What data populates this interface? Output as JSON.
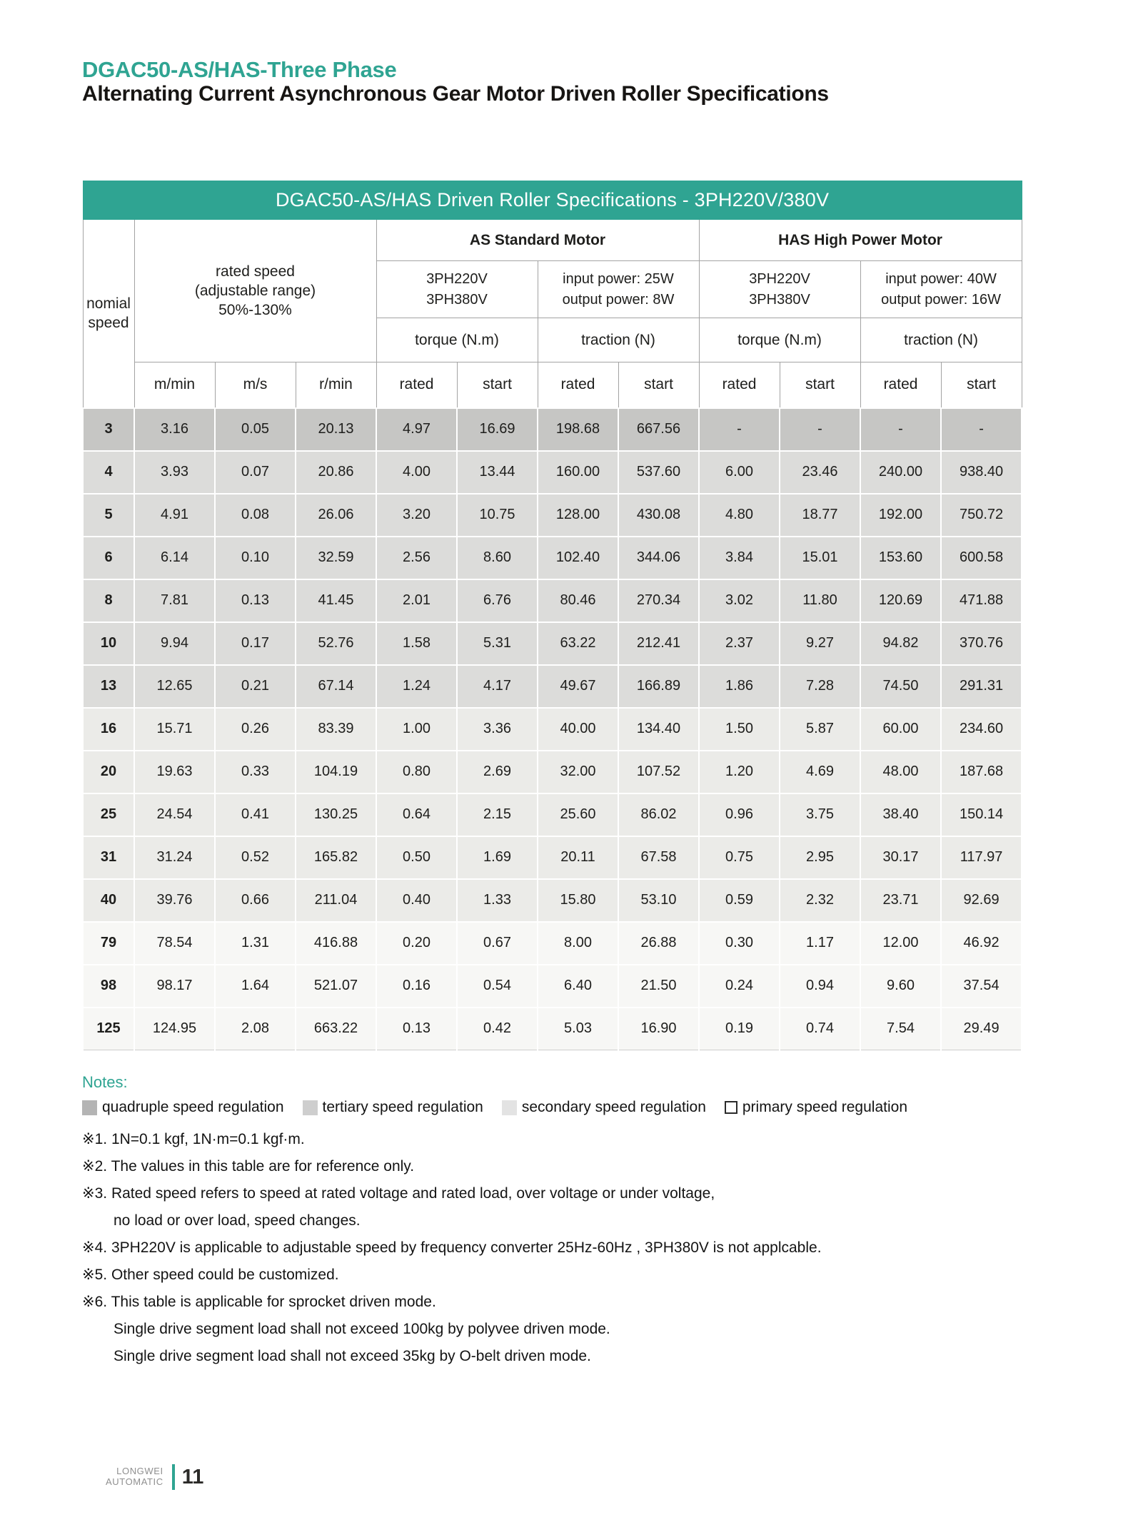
{
  "page": {
    "heading_line1": "DGAC50-AS/HAS-Three Phase",
    "heading_line2": "Alternating Current Asynchronous Gear Motor Driven Roller Specifications"
  },
  "table": {
    "title": "DGAC50-AS/HAS Driven Roller Specifications - 3PH220V/380V",
    "headers": {
      "nominal_speed": "nomial\nspeed",
      "rated_speed": "rated speed\n(adjustable range)\n50%-130%",
      "as_group": "AS Standard Motor",
      "has_group": "HAS High Power Motor",
      "as_voltage": "3PH220V\n3PH380V",
      "as_power": "input power: 25W\noutput power: 8W",
      "has_voltage": "3PH220V\n3PH380V",
      "has_power": "input power: 40W\noutput power: 16W",
      "as_torque": "torque (N.m)",
      "as_traction": "traction (N)",
      "has_torque": "torque (N.m)",
      "has_traction": "traction (N)",
      "units": [
        "m/min",
        "m/s",
        "r/min",
        "rated",
        "start",
        "rated",
        "start",
        "rated",
        "start",
        "rated",
        "start"
      ]
    },
    "rows": [
      {
        "speed": "3",
        "regulation": "quadruple",
        "values": [
          "3.16",
          "0.05",
          "20.13",
          "4.97",
          "16.69",
          "198.68",
          "667.56",
          "-",
          "-",
          "-",
          "-"
        ]
      },
      {
        "speed": "4",
        "regulation": "tertiary",
        "values": [
          "3.93",
          "0.07",
          "20.86",
          "4.00",
          "13.44",
          "160.00",
          "537.60",
          "6.00",
          "23.46",
          "240.00",
          "938.40"
        ]
      },
      {
        "speed": "5",
        "regulation": "tertiary",
        "values": [
          "4.91",
          "0.08",
          "26.06",
          "3.20",
          "10.75",
          "128.00",
          "430.08",
          "4.80",
          "18.77",
          "192.00",
          "750.72"
        ]
      },
      {
        "speed": "6",
        "regulation": "tertiary",
        "values": [
          "6.14",
          "0.10",
          "32.59",
          "2.56",
          "8.60",
          "102.40",
          "344.06",
          "3.84",
          "15.01",
          "153.60",
          "600.58"
        ]
      },
      {
        "speed": "8",
        "regulation": "tertiary",
        "values": [
          "7.81",
          "0.13",
          "41.45",
          "2.01",
          "6.76",
          "80.46",
          "270.34",
          "3.02",
          "11.80",
          "120.69",
          "471.88"
        ]
      },
      {
        "speed": "10",
        "regulation": "tertiary",
        "values": [
          "9.94",
          "0.17",
          "52.76",
          "1.58",
          "5.31",
          "63.22",
          "212.41",
          "2.37",
          "9.27",
          "94.82",
          "370.76"
        ]
      },
      {
        "speed": "13",
        "regulation": "tertiary",
        "values": [
          "12.65",
          "0.21",
          "67.14",
          "1.24",
          "4.17",
          "49.67",
          "166.89",
          "1.86",
          "7.28",
          "74.50",
          "291.31"
        ]
      },
      {
        "speed": "16",
        "regulation": "secondary",
        "values": [
          "15.71",
          "0.26",
          "83.39",
          "1.00",
          "3.36",
          "40.00",
          "134.40",
          "1.50",
          "5.87",
          "60.00",
          "234.60"
        ]
      },
      {
        "speed": "20",
        "regulation": "secondary",
        "values": [
          "19.63",
          "0.33",
          "104.19",
          "0.80",
          "2.69",
          "32.00",
          "107.52",
          "1.20",
          "4.69",
          "48.00",
          "187.68"
        ]
      },
      {
        "speed": "25",
        "regulation": "secondary",
        "values": [
          "24.54",
          "0.41",
          "130.25",
          "0.64",
          "2.15",
          "25.60",
          "86.02",
          "0.96",
          "3.75",
          "38.40",
          "150.14"
        ]
      },
      {
        "speed": "31",
        "regulation": "secondary",
        "values": [
          "31.24",
          "0.52",
          "165.82",
          "0.50",
          "1.69",
          "20.11",
          "67.58",
          "0.75",
          "2.95",
          "30.17",
          "117.97"
        ]
      },
      {
        "speed": "40",
        "regulation": "secondary",
        "values": [
          "39.76",
          "0.66",
          "211.04",
          "0.40",
          "1.33",
          "15.80",
          "53.10",
          "0.59",
          "2.32",
          "23.71",
          "92.69"
        ]
      },
      {
        "speed": "79",
        "regulation": "primary",
        "values": [
          "78.54",
          "1.31",
          "416.88",
          "0.20",
          "0.67",
          "8.00",
          "26.88",
          "0.30",
          "1.17",
          "12.00",
          "46.92"
        ]
      },
      {
        "speed": "98",
        "regulation": "primary",
        "values": [
          "98.17",
          "1.64",
          "521.07",
          "0.16",
          "0.54",
          "6.40",
          "21.50",
          "0.24",
          "0.94",
          "9.60",
          "37.54"
        ]
      },
      {
        "speed": "125",
        "regulation": "primary",
        "values": [
          "124.95",
          "2.08",
          "663.22",
          "0.13",
          "0.42",
          "5.03",
          "16.90",
          "0.19",
          "0.74",
          "7.54",
          "29.49"
        ]
      }
    ]
  },
  "legend": {
    "title": "Notes:",
    "items": [
      {
        "swatch": "quadruple",
        "label": "quadruple speed regulation"
      },
      {
        "swatch": "tertiary",
        "label": "tertiary speed regulation"
      },
      {
        "swatch": "secondary",
        "label": "secondary speed regulation"
      },
      {
        "swatch": "primary",
        "label": "primary speed regulation"
      }
    ]
  },
  "notes": {
    "lines": [
      {
        "text": "※1. 1N=0.1 kgf, 1N·m=0.1 kgf·m.",
        "indent": false
      },
      {
        "text": "※2. The values in this table are for reference only.",
        "indent": false
      },
      {
        "text": "※3. Rated speed refers to speed at rated voltage and rated load, over voltage or under voltage,",
        "indent": false
      },
      {
        "text": "no load or over load, speed changes.",
        "indent": true
      },
      {
        "text": "※4. 3PH220V is applicable to adjustable speed by frequency converter 25Hz-60Hz , 3PH380V is not applcable.",
        "indent": false
      },
      {
        "text": "※5. Other speed could be customized.",
        "indent": false
      },
      {
        "text": "※6. This table is applicable for sprocket driven mode.",
        "indent": false
      },
      {
        "text": "Single drive segment load shall not exceed 100kg by polyvee driven mode.",
        "indent": true
      },
      {
        "text": "Single drive segment load shall not exceed 35kg by O-belt driven mode.",
        "indent": true
      }
    ]
  },
  "footer": {
    "brand_line1": "LONGWEI",
    "brand_line2": "AUTOMATIC",
    "page_number": "11"
  },
  "colors": {
    "accent_teal": "#2fa492",
    "row_quadruple": "#c6c6c4",
    "row_tertiary": "#dcdcda",
    "row_secondary": "#ebebe8",
    "row_primary": "#f7f7f5"
  }
}
